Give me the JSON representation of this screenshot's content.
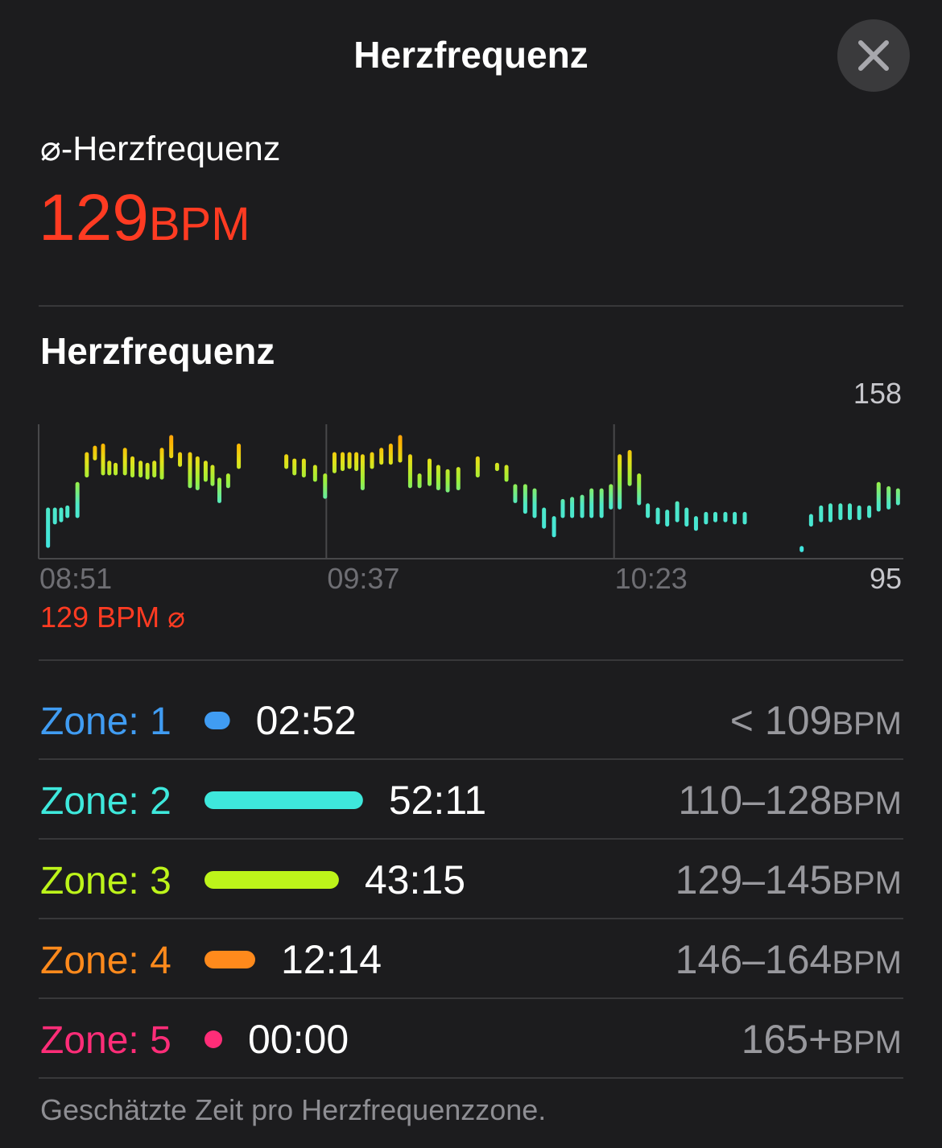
{
  "header": {
    "title": "Herzfrequenz"
  },
  "average": {
    "label": "⌀-Herzfrequenz",
    "value": 129,
    "unit": "BPM"
  },
  "section_title": "Herzfrequenz",
  "chart_data": {
    "type": "range-bar",
    "x": [
      532.5,
      533.6,
      534.6,
      535.6,
      537.2,
      538.7,
      540.0,
      541.3,
      542.3,
      543.3,
      544.8,
      546.0,
      547.3,
      548.4,
      549.5,
      550.7,
      552.2,
      553.6,
      555.2,
      556.4,
      557.7,
      558.8,
      559.9,
      561.3,
      563.0,
      570.6,
      571.9,
      573.4,
      575.2,
      576.8,
      578.3,
      579.6,
      580.7,
      581.8,
      582.8,
      584.3,
      585.8,
      587.3,
      588.8,
      590.4,
      591.9,
      593.5,
      594.9,
      596.4,
      598.1,
      601.2,
      604.3,
      605.8,
      607.2,
      608.8,
      610.3,
      611.8,
      613.4,
      614.8,
      616.3,
      617.9,
      619.4,
      621.0,
      622.5,
      623.9,
      625.5,
      627.0,
      628.4,
      630.0,
      631.5,
      633.1,
      634.6,
      636.1,
      637.7,
      639.2,
      640.8,
      642.3,
      643.9,
      653.0,
      654.5,
      656.1,
      657.6,
      659.2,
      660.7,
      662.2,
      663.8,
      665.3,
      666.9,
      668.4
    ],
    "low": [
      101,
      112,
      113,
      115,
      115,
      134,
      142,
      135,
      135,
      135,
      135,
      134,
      134,
      133,
      134,
      133,
      143,
      139,
      129,
      128,
      132,
      130,
      122,
      129,
      138,
      138,
      135,
      134,
      132,
      124,
      136,
      137,
      138,
      137,
      128,
      138,
      140,
      140,
      141,
      129,
      129,
      130,
      128,
      127,
      128,
      134,
      137,
      132,
      122,
      117,
      115,
      110,
      106,
      115,
      115,
      115,
      115,
      115,
      119,
      119,
      130,
      121,
      115,
      112,
      111,
      113,
      111,
      109,
      112,
      113,
      113,
      112,
      112,
      99,
      111,
      113,
      113,
      114,
      114,
      114,
      115,
      118,
      119,
      121
    ],
    "high": [
      118,
      118,
      118,
      119,
      130,
      144,
      147,
      148,
      140,
      139,
      146,
      142,
      140,
      139,
      140,
      146,
      152,
      144,
      144,
      142,
      140,
      138,
      132,
      134,
      148,
      143,
      141,
      141,
      138,
      134,
      144,
      144,
      144,
      144,
      143,
      144,
      146,
      148,
      152,
      143,
      134,
      141,
      138,
      136,
      137,
      142,
      139,
      138,
      129,
      129,
      127,
      118,
      114,
      122,
      123,
      124,
      127,
      127,
      129,
      143,
      145,
      134,
      120,
      118,
      117,
      121,
      118,
      114,
      116,
      116,
      116,
      116,
      116,
      100,
      115,
      119,
      120,
      120,
      120,
      119,
      119,
      130,
      128,
      127
    ],
    "xlim": [
      531,
      669
    ],
    "xticks": [
      {
        "value": 531,
        "label": "08:51"
      },
      {
        "value": 577,
        "label": "09:37"
      },
      {
        "value": 623,
        "label": "10:23"
      }
    ],
    "ylim": [
      95,
      158
    ],
    "yticks": [
      95,
      158
    ],
    "average_label": "129 BPM ⌀"
  },
  "zones": [
    {
      "name": "Zone: 1",
      "time": "02:52",
      "range": "< 109",
      "unit": "BPM",
      "color": "#409cf2"
    },
    {
      "name": "Zone: 2",
      "time": "52:11",
      "range": "110–128",
      "unit": "BPM",
      "color": "#3ee8dc"
    },
    {
      "name": "Zone: 3",
      "time": "43:15",
      "range": "129–145",
      "unit": "BPM",
      "color": "#bdf41a"
    },
    {
      "name": "Zone: 4",
      "time": "12:14",
      "range": "146–164",
      "unit": "BPM",
      "color": "#ff8a1c"
    },
    {
      "name": "Zone: 5",
      "time": "00:00",
      "range": "165+",
      "unit": "BPM",
      "color": "#ff2d78"
    }
  ],
  "footnote": "Geschätzte Zeit pro Herzfrequenzzone."
}
